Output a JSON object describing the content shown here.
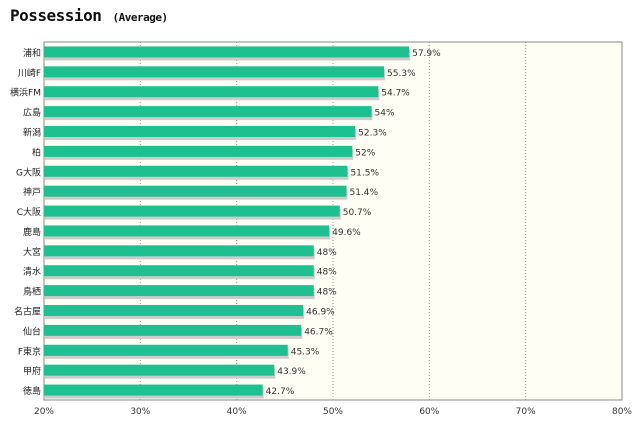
{
  "title": "Possession",
  "subtitle": "(Average)",
  "chart_data": {
    "type": "bar",
    "orientation": "horizontal",
    "title": "Possession",
    "subtitle": "(Average)",
    "categories": [
      "浦和",
      "川崎F",
      "横浜FM",
      "広島",
      "新潟",
      "柏",
      "G大阪",
      "神戸",
      "C大阪",
      "鹿島",
      "大宮",
      "清水",
      "鳥栖",
      "名古屋",
      "仙台",
      "F東京",
      "甲府",
      "徳島"
    ],
    "values": [
      57.9,
      55.3,
      54.7,
      54,
      52.3,
      52,
      51.5,
      51.4,
      50.7,
      49.6,
      48,
      48,
      48,
      46.9,
      46.7,
      45.3,
      43.9,
      42.7
    ],
    "value_labels": [
      "57.9%",
      "55.3%",
      "54.7%",
      "54%",
      "52.3%",
      "52%",
      "51.5%",
      "51.4%",
      "50.7%",
      "49.6%",
      "48%",
      "48%",
      "48%",
      "46.9%",
      "46.7%",
      "45.3%",
      "43.9%",
      "42.7%"
    ],
    "xlim": [
      20,
      80
    ],
    "x_ticks": [
      "20%",
      "30%",
      "40%",
      "50%",
      "60%",
      "70%",
      "80%"
    ],
    "xlabel": "",
    "ylabel": "",
    "grid": true,
    "bar_color": "#1ec08f",
    "background_color": "#fffef5"
  }
}
